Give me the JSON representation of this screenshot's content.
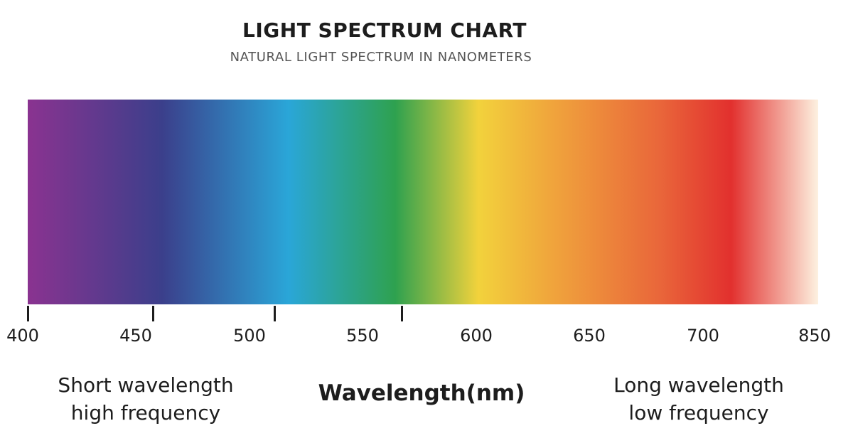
{
  "header": {
    "title": "LIGHT SPECTRUM CHART",
    "subtitle": "NATURAL LIGHT SPECTRUM IN NANOMETERS"
  },
  "spectrum": {
    "gradient_colors": [
      "#8a3390",
      "#3b3f8b",
      "#2aa6d8",
      "#2ea14f",
      "#f2d23c",
      "#f0a63c",
      "#e9663a",
      "#e2302e",
      "#fdf1e0"
    ],
    "tick_labels": [
      "400",
      "450",
      "500",
      "550",
      "600",
      "650",
      "700",
      "850"
    ],
    "tick_marks_count": 4
  },
  "annotations": {
    "left": [
      "Short wavelength",
      "high frequency"
    ],
    "right": [
      "Long wavelength",
      "low frequency"
    ]
  },
  "axis": {
    "title": "Wavelength(nm)"
  }
}
